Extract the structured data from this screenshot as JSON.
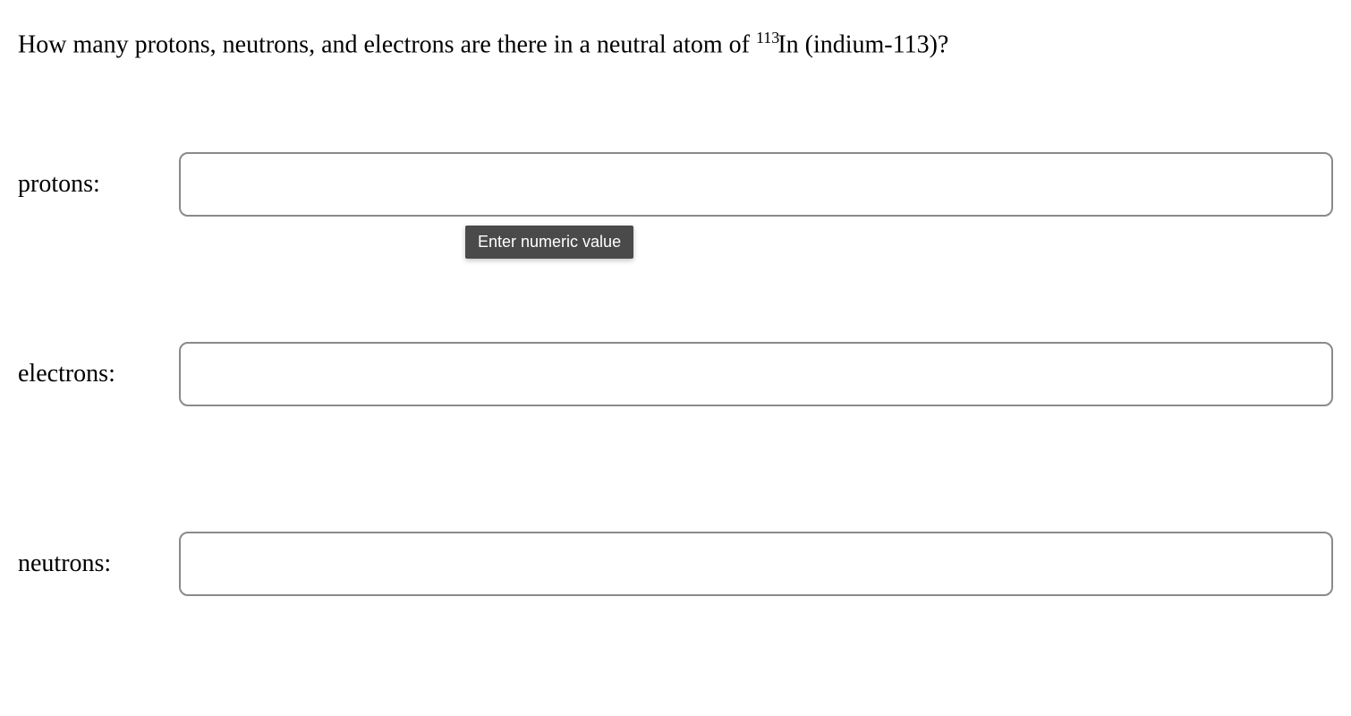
{
  "question": {
    "prefix": "How many protons, neutrons, and electrons are there in a neutral atom of ",
    "mass_number": "113",
    "element_symbol": "In",
    "suffix": " (indium-113)?"
  },
  "fields": {
    "protons": {
      "label": "protons:",
      "value": ""
    },
    "electrons": {
      "label": "electrons:",
      "value": ""
    },
    "neutrons": {
      "label": "neutrons:",
      "value": ""
    }
  },
  "tooltip": {
    "text": "Enter numeric value"
  },
  "styling": {
    "background_color": "#ffffff",
    "text_color": "#000000",
    "input_border_color": "#8a8a8a",
    "input_border_radius": 10,
    "input_height": 72,
    "tooltip_background": "#4a4a4a",
    "tooltip_text_color": "#ffffff",
    "question_fontsize": 28,
    "label_fontsize": 28,
    "tooltip_fontsize": 18,
    "field_spacing": 140
  }
}
